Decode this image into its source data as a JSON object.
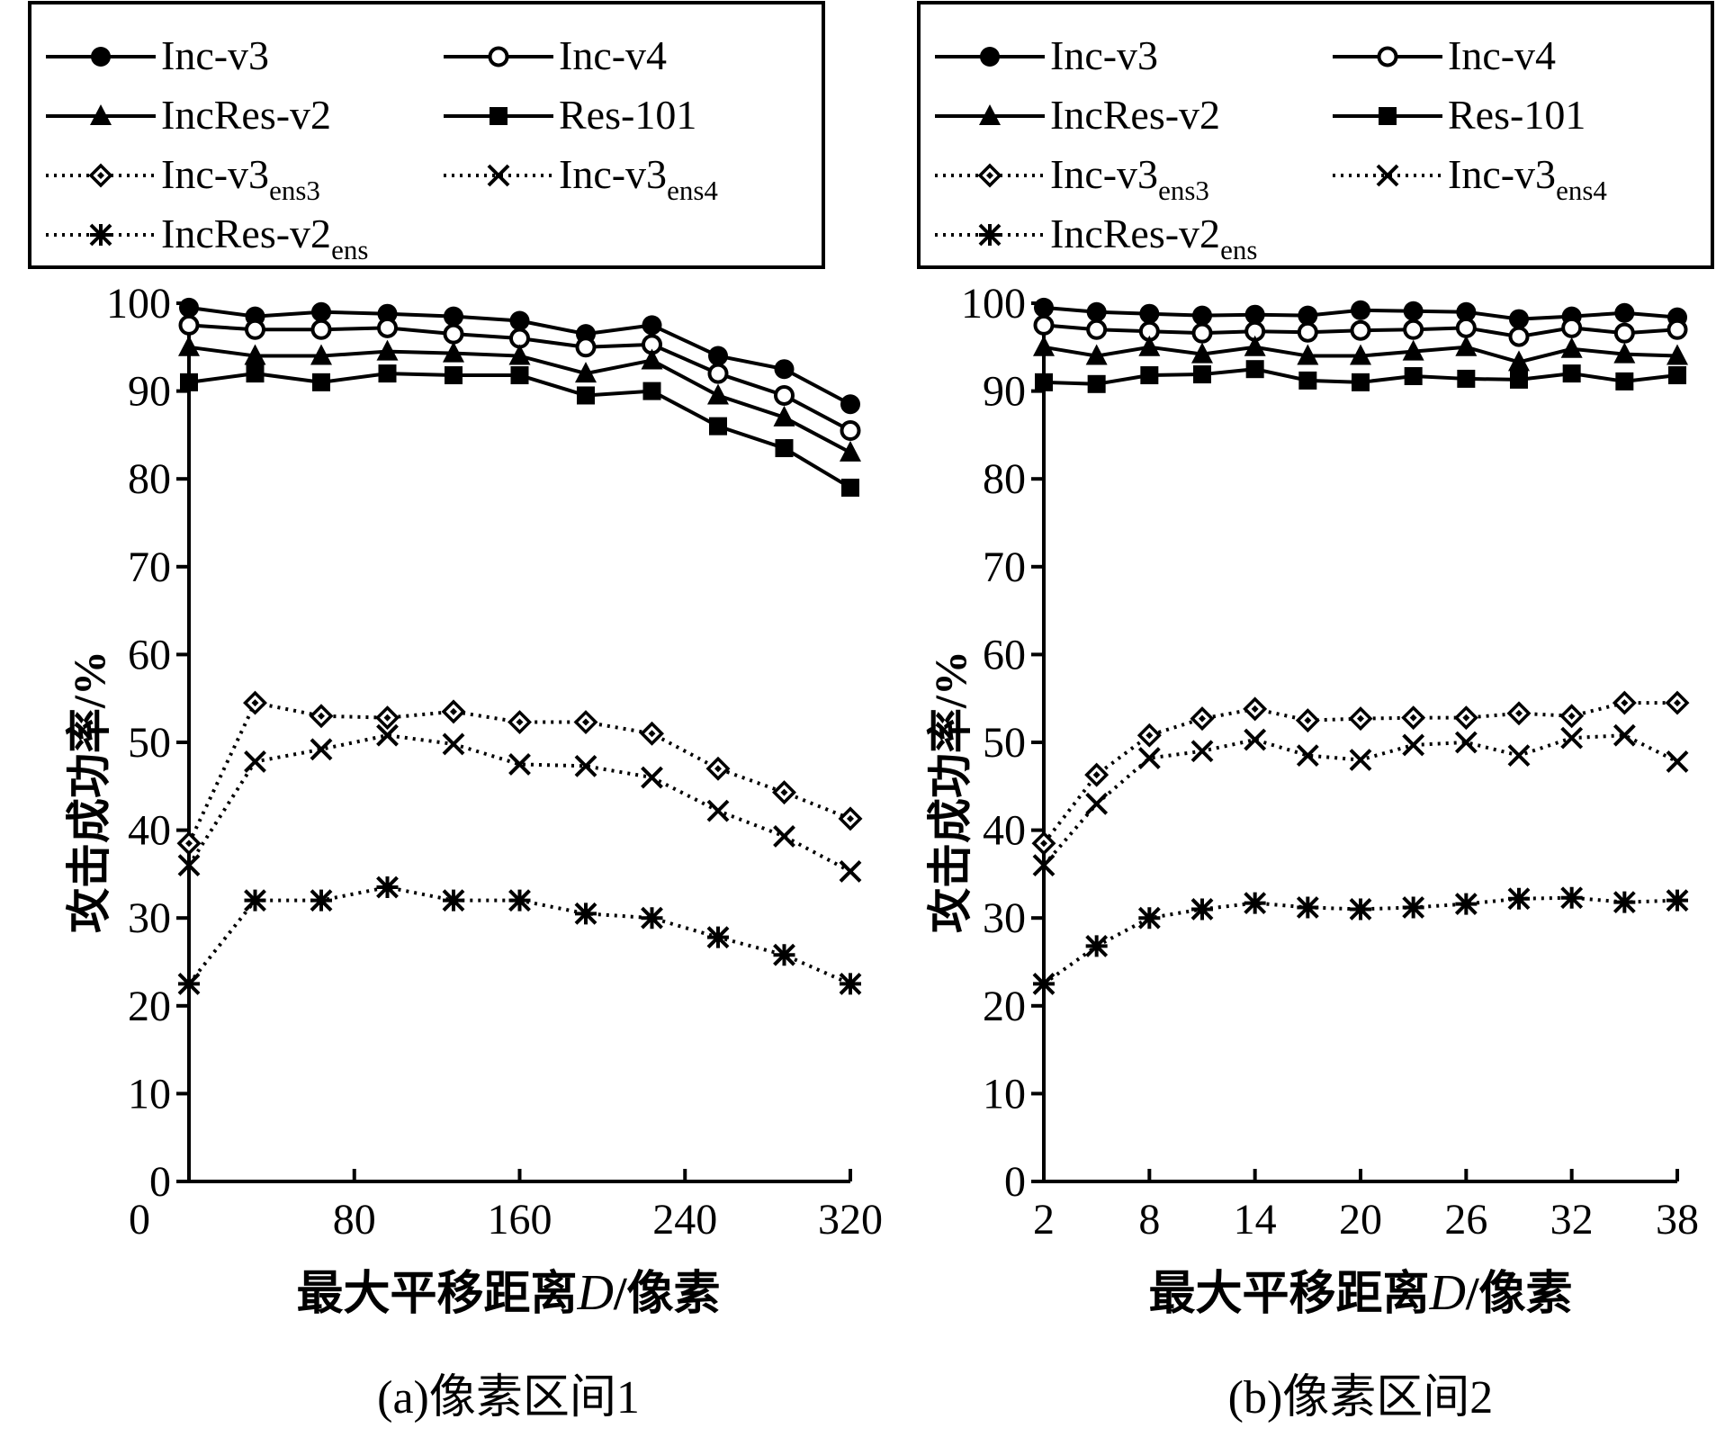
{
  "chart_data": [
    {
      "type": "line",
      "caption": "(a)像素区间1",
      "xlabel_prefix": "最大平移距离",
      "xlabel_var": "D",
      "xlabel_suffix": "/像素",
      "ylabel": "攻击成功率/%",
      "xlim": [
        0,
        320
      ],
      "ylim": [
        0,
        100
      ],
      "xticks": [
        0,
        80,
        160,
        240,
        320
      ],
      "yticks": [
        0,
        10,
        20,
        30,
        40,
        50,
        60,
        70,
        80,
        90,
        100
      ],
      "grid": false,
      "legend_position": "top",
      "x": [
        0,
        32,
        64,
        96,
        128,
        160,
        192,
        224,
        256,
        288,
        320
      ],
      "series": [
        {
          "name": "Inc-v3",
          "sub": "",
          "marker": "circle-filled",
          "dash": "solid",
          "values": [
            99.5,
            98.5,
            99.0,
            98.8,
            98.5,
            98.0,
            96.5,
            97.5,
            94.0,
            92.5,
            88.5
          ]
        },
        {
          "name": "Inc-v4",
          "sub": "",
          "marker": "circle-open",
          "dash": "solid",
          "values": [
            97.5,
            97.0,
            97.0,
            97.2,
            96.5,
            96.0,
            95.0,
            95.3,
            92.0,
            89.5,
            85.5
          ]
        },
        {
          "name": "IncRes-v2",
          "sub": "",
          "marker": "triangle-filled",
          "dash": "solid",
          "values": [
            95.0,
            94.0,
            94.0,
            94.5,
            94.3,
            94.0,
            92.0,
            93.5,
            89.5,
            87.0,
            83.0
          ]
        },
        {
          "name": "Res-101",
          "sub": "",
          "marker": "square-filled",
          "dash": "solid",
          "values": [
            91.0,
            92.0,
            91.0,
            92.0,
            91.8,
            91.8,
            89.5,
            90.0,
            86.0,
            83.5,
            79.0
          ]
        },
        {
          "name": "Inc-v3",
          "sub": "ens3",
          "marker": "diamond-open",
          "dash": "dotted",
          "values": [
            38.5,
            54.5,
            53.0,
            52.8,
            53.5,
            52.3,
            52.3,
            51.0,
            47.0,
            44.3,
            41.3
          ]
        },
        {
          "name": "Inc-v3",
          "sub": "ens4",
          "marker": "x",
          "dash": "dotted",
          "values": [
            36.0,
            47.8,
            49.2,
            50.8,
            49.8,
            47.5,
            47.3,
            46.0,
            42.2,
            39.3,
            35.3
          ]
        },
        {
          "name": "IncRes-v2",
          "sub": "ens",
          "marker": "asterisk",
          "dash": "dotted",
          "values": [
            22.5,
            32.0,
            32.0,
            33.5,
            32.0,
            32.0,
            30.5,
            30.0,
            27.8,
            25.8,
            22.5
          ]
        }
      ]
    },
    {
      "type": "line",
      "caption": "(b)像素区间2",
      "xlabel_prefix": "最大平移距离",
      "xlabel_var": "D",
      "xlabel_suffix": "/像素",
      "ylabel": "攻击成功率/%",
      "xlim": [
        2,
        38
      ],
      "ylim": [
        0,
        100
      ],
      "xticks": [
        2,
        8,
        14,
        20,
        26,
        32,
        38
      ],
      "yticks": [
        0,
        10,
        20,
        30,
        40,
        50,
        60,
        70,
        80,
        90,
        100
      ],
      "grid": false,
      "legend_position": "top",
      "x": [
        2,
        5,
        8,
        11,
        14,
        17,
        20,
        23,
        26,
        29,
        32,
        35,
        38
      ],
      "series": [
        {
          "name": "Inc-v3",
          "sub": "",
          "marker": "circle-filled",
          "dash": "solid",
          "values": [
            99.5,
            99.0,
            98.8,
            98.6,
            98.7,
            98.6,
            99.2,
            99.1,
            99.0,
            98.2,
            98.5,
            98.9,
            98.4
          ]
        },
        {
          "name": "Inc-v4",
          "sub": "",
          "marker": "circle-open",
          "dash": "solid",
          "values": [
            97.5,
            97.0,
            96.8,
            96.6,
            96.8,
            96.7,
            96.9,
            97.0,
            97.2,
            96.2,
            97.2,
            96.6,
            97.0
          ]
        },
        {
          "name": "IncRes-v2",
          "sub": "",
          "marker": "triangle-filled",
          "dash": "solid",
          "values": [
            95.0,
            94.0,
            95.0,
            94.2,
            95.0,
            94.0,
            94.0,
            94.5,
            95.0,
            93.3,
            94.8,
            94.2,
            94.0
          ]
        },
        {
          "name": "Res-101",
          "sub": "",
          "marker": "square-filled",
          "dash": "solid",
          "values": [
            91.0,
            90.8,
            91.8,
            91.9,
            92.5,
            91.2,
            91.0,
            91.7,
            91.4,
            91.3,
            92.0,
            91.1,
            91.8
          ]
        },
        {
          "name": "Inc-v3",
          "sub": "ens3",
          "marker": "diamond-open",
          "dash": "dotted",
          "values": [
            38.5,
            46.3,
            50.8,
            52.7,
            53.8,
            52.5,
            52.7,
            52.8,
            52.8,
            53.3,
            53.0,
            54.5,
            54.5
          ]
        },
        {
          "name": "Inc-v3",
          "sub": "ens4",
          "marker": "x",
          "dash": "dotted",
          "values": [
            36.0,
            43.0,
            48.2,
            49.0,
            50.3,
            48.5,
            48.0,
            49.7,
            50.0,
            48.5,
            50.5,
            50.8,
            47.8
          ]
        },
        {
          "name": "IncRes-v2",
          "sub": "ens",
          "marker": "asterisk",
          "dash": "dotted",
          "values": [
            22.5,
            26.8,
            30.0,
            31.0,
            31.7,
            31.2,
            31.0,
            31.2,
            31.6,
            32.2,
            32.3,
            31.8,
            32.0
          ]
        }
      ]
    }
  ]
}
